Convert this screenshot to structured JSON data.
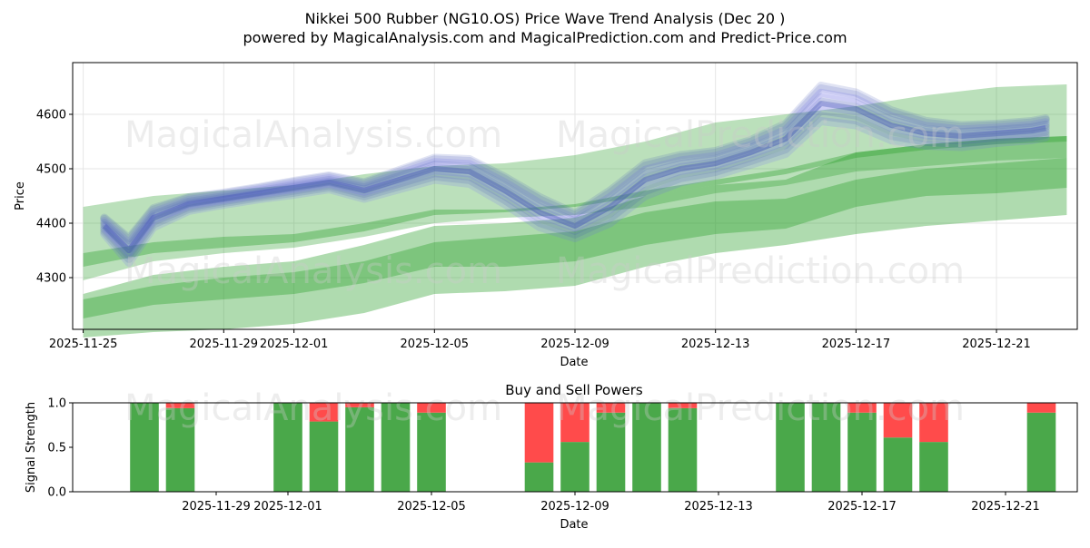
{
  "title_line1": "Nikkei 500 Rubber (NG10.OS) Price Wave Trend Analysis (Dec 20 )",
  "title_line2": "powered by MagicalAnalysis.com and MagicalPrediction.com and Predict-Price.com",
  "watermarks": [
    "MagicalAnalysis.com",
    "MagicalPrediction.com"
  ],
  "colors": {
    "band_green": "#2ca02c",
    "wave_blue": "#3f51b5",
    "wave_violet": "#6a5cff",
    "buy": "#4aa84a",
    "sell": "#ff4b4b",
    "grid": "#e6e6e6"
  },
  "chart_data": [
    {
      "type": "line",
      "title": "",
      "xlabel": "Date",
      "ylabel": "Price",
      "x_tick_labels": [
        "2025-11-25",
        "2025-11-29",
        "2025-12-01",
        "2025-12-05",
        "2025-12-09",
        "2025-12-13",
        "2025-12-17",
        "2025-12-21"
      ],
      "x_tick_days": [
        0,
        4,
        6,
        10,
        14,
        18,
        22,
        26
      ],
      "xlim_days": [
        -0.3,
        28.3
      ],
      "y_ticks": [
        4300,
        4400,
        4500,
        4600
      ],
      "ylim": [
        4205,
        4695
      ],
      "x_days": [
        0.6,
        1.3,
        2,
        3,
        4,
        5,
        6,
        7,
        8,
        9,
        10,
        11,
        12,
        13,
        14,
        15,
        16,
        17,
        18,
        19,
        20,
        21,
        22,
        23,
        24,
        25,
        26,
        27,
        27.4
      ],
      "price_wave": [
        4395,
        4350,
        4410,
        4435,
        4445,
        4455,
        4465,
        4475,
        4460,
        4480,
        4500,
        4495,
        4460,
        4420,
        4395,
        4430,
        4480,
        4500,
        4510,
        4530,
        4555,
        4620,
        4610,
        4580,
        4565,
        4560,
        4565,
        4570,
        4575
      ],
      "wave_spread": [
        30,
        45,
        35,
        25,
        22,
        22,
        25,
        25,
        30,
        35,
        40,
        45,
        50,
        55,
        45,
        60,
        60,
        50,
        45,
        45,
        55,
        65,
        60,
        55,
        45,
        40,
        35,
        35,
        35
      ],
      "green_bands": [
        {
          "x_days": [
            0,
            2,
            4,
            6,
            8,
            10,
            12,
            14,
            16,
            18,
            20,
            22,
            24,
            26,
            28
          ],
          "lower": [
            4295,
            4330,
            4345,
            4355,
            4375,
            4400,
            4410,
            4415,
            4430,
            4455,
            4470,
            4495,
            4505,
            4515,
            4520
          ],
          "upper": [
            4430,
            4450,
            4460,
            4470,
            4490,
            4505,
            4510,
            4525,
            4550,
            4585,
            4600,
            4615,
            4635,
            4650,
            4655
          ]
        },
        {
          "x_days": [
            0,
            2,
            4,
            6,
            8,
            10,
            12,
            14,
            16,
            18,
            20,
            22,
            24,
            26,
            28
          ],
          "lower": [
            4190,
            4200,
            4205,
            4215,
            4235,
            4270,
            4275,
            4285,
            4320,
            4345,
            4360,
            4380,
            4395,
            4405,
            4415
          ],
          "upper": [
            4270,
            4305,
            4320,
            4330,
            4360,
            4395,
            4400,
            4410,
            4450,
            4470,
            4480,
            4530,
            4545,
            4555,
            4560
          ]
        },
        {
          "x_days": [
            0,
            2,
            4,
            6,
            8,
            10,
            12,
            14,
            16,
            18,
            20,
            22,
            24,
            26,
            28
          ],
          "lower": [
            4225,
            4250,
            4260,
            4270,
            4290,
            4320,
            4320,
            4330,
            4360,
            4380,
            4390,
            4430,
            4450,
            4455,
            4465
          ],
          "upper": [
            4260,
            4285,
            4300,
            4310,
            4330,
            4365,
            4375,
            4385,
            4420,
            4440,
            4445,
            4480,
            4500,
            4510,
            4520
          ]
        },
        {
          "x_days": [
            0,
            2,
            4,
            6,
            8,
            10,
            12,
            14,
            16,
            18,
            20,
            22,
            24,
            26,
            28
          ],
          "lower": [
            4320,
            4345,
            4355,
            4365,
            4385,
            4415,
            4420,
            4430,
            4450,
            4470,
            4490,
            4520,
            4535,
            4545,
            4550
          ],
          "upper": [
            4345,
            4365,
            4375,
            4380,
            4400,
            4425,
            4425,
            4435,
            4460,
            4480,
            4500,
            4530,
            4545,
            4555,
            4560
          ]
        }
      ]
    },
    {
      "type": "bar",
      "title": "Buy and Sell Powers",
      "xlabel": "Date",
      "ylabel": "Signal Strength",
      "x_tick_labels": [
        "2025-11-29",
        "2025-12-01",
        "2025-12-05",
        "2025-12-09",
        "2025-12-13",
        "2025-12-17",
        "2025-12-21"
      ],
      "x_tick_days": [
        4,
        6,
        10,
        14,
        18,
        22,
        26
      ],
      "xlim_days": [
        0.0,
        28.0
      ],
      "y_ticks": [
        0.0,
        0.5,
        1.0
      ],
      "y_tick_labels": [
        "0.0",
        "0.5",
        "1.0"
      ],
      "ylim": [
        0,
        1
      ],
      "bar_days": [
        2,
        3,
        6,
        7,
        8,
        9,
        10,
        13,
        14,
        15,
        16,
        17,
        20,
        21,
        22,
        23,
        24,
        27
      ],
      "buy_values": [
        1.0,
        0.94,
        1.0,
        0.79,
        0.95,
        1.0,
        0.89,
        0.33,
        0.56,
        0.89,
        1.0,
        0.94,
        1.0,
        1.0,
        0.89,
        0.61,
        0.56,
        0.89
      ],
      "sell_values": [
        0.0,
        0.06,
        0.0,
        0.21,
        0.05,
        0.0,
        0.11,
        0.67,
        0.44,
        0.11,
        0.0,
        0.06,
        0.0,
        0.0,
        0.11,
        0.39,
        0.44,
        0.11
      ]
    }
  ]
}
